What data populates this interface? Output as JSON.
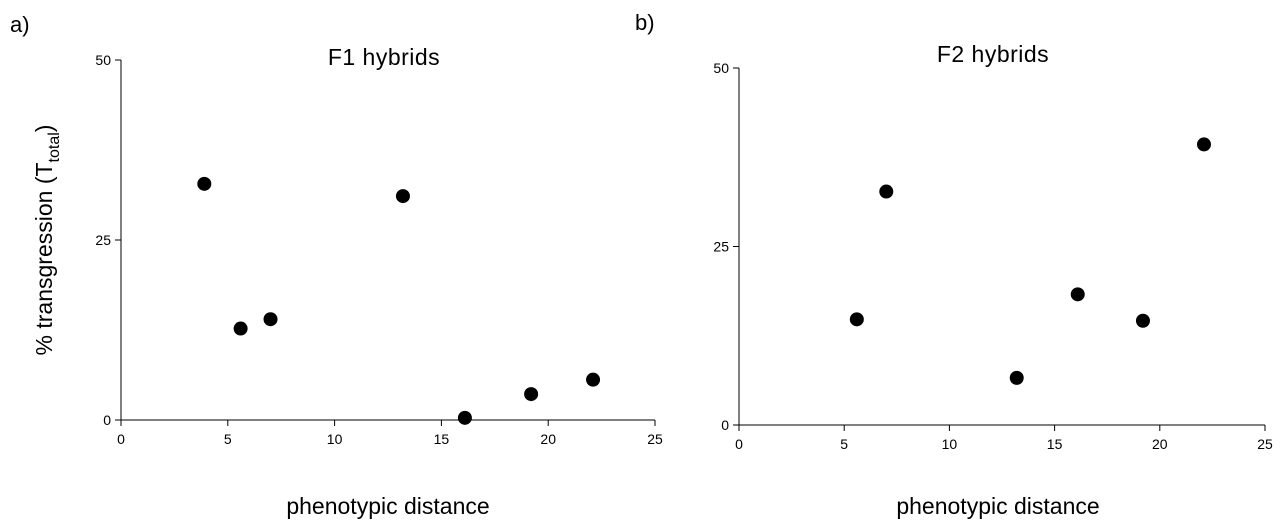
{
  "chart_data": [
    {
      "type": "scatter",
      "panel_label": "a)",
      "title": "F1 hybrids",
      "xlabel": "phenotypic distance",
      "ylabel": "% transgression (T",
      "ylabel_sub": "total",
      "ylabel_close": ")",
      "xlim": [
        0,
        25
      ],
      "ylim": [
        0,
        50
      ],
      "xticks": [
        0,
        5,
        10,
        15,
        20,
        25
      ],
      "yticks": [
        0,
        25,
        50
      ],
      "grid": false,
      "legend": "none",
      "marker_color": "#000000",
      "points": [
        {
          "x": 3.9,
          "y": 32.8
        },
        {
          "x": 5.6,
          "y": 12.7
        },
        {
          "x": 7.0,
          "y": 14.0
        },
        {
          "x": 13.2,
          "y": 31.1
        },
        {
          "x": 16.1,
          "y": 0.3
        },
        {
          "x": 19.2,
          "y": 3.6
        },
        {
          "x": 22.1,
          "y": 5.6
        }
      ]
    },
    {
      "type": "scatter",
      "panel_label": "b)",
      "title": "F2 hybrids",
      "xlabel": "phenotypic distance",
      "ylabel": "",
      "xlim": [
        0,
        25
      ],
      "ylim": [
        0,
        50
      ],
      "xticks": [
        0,
        5,
        10,
        15,
        20,
        25
      ],
      "yticks": [
        0,
        25,
        50
      ],
      "grid": false,
      "legend": "none",
      "marker_color": "#000000",
      "points": [
        {
          "x": 5.6,
          "y": 14.8
        },
        {
          "x": 7.0,
          "y": 32.7
        },
        {
          "x": 13.2,
          "y": 6.6
        },
        {
          "x": 16.1,
          "y": 18.3
        },
        {
          "x": 19.2,
          "y": 14.6
        },
        {
          "x": 22.1,
          "y": 39.3
        }
      ]
    }
  ]
}
